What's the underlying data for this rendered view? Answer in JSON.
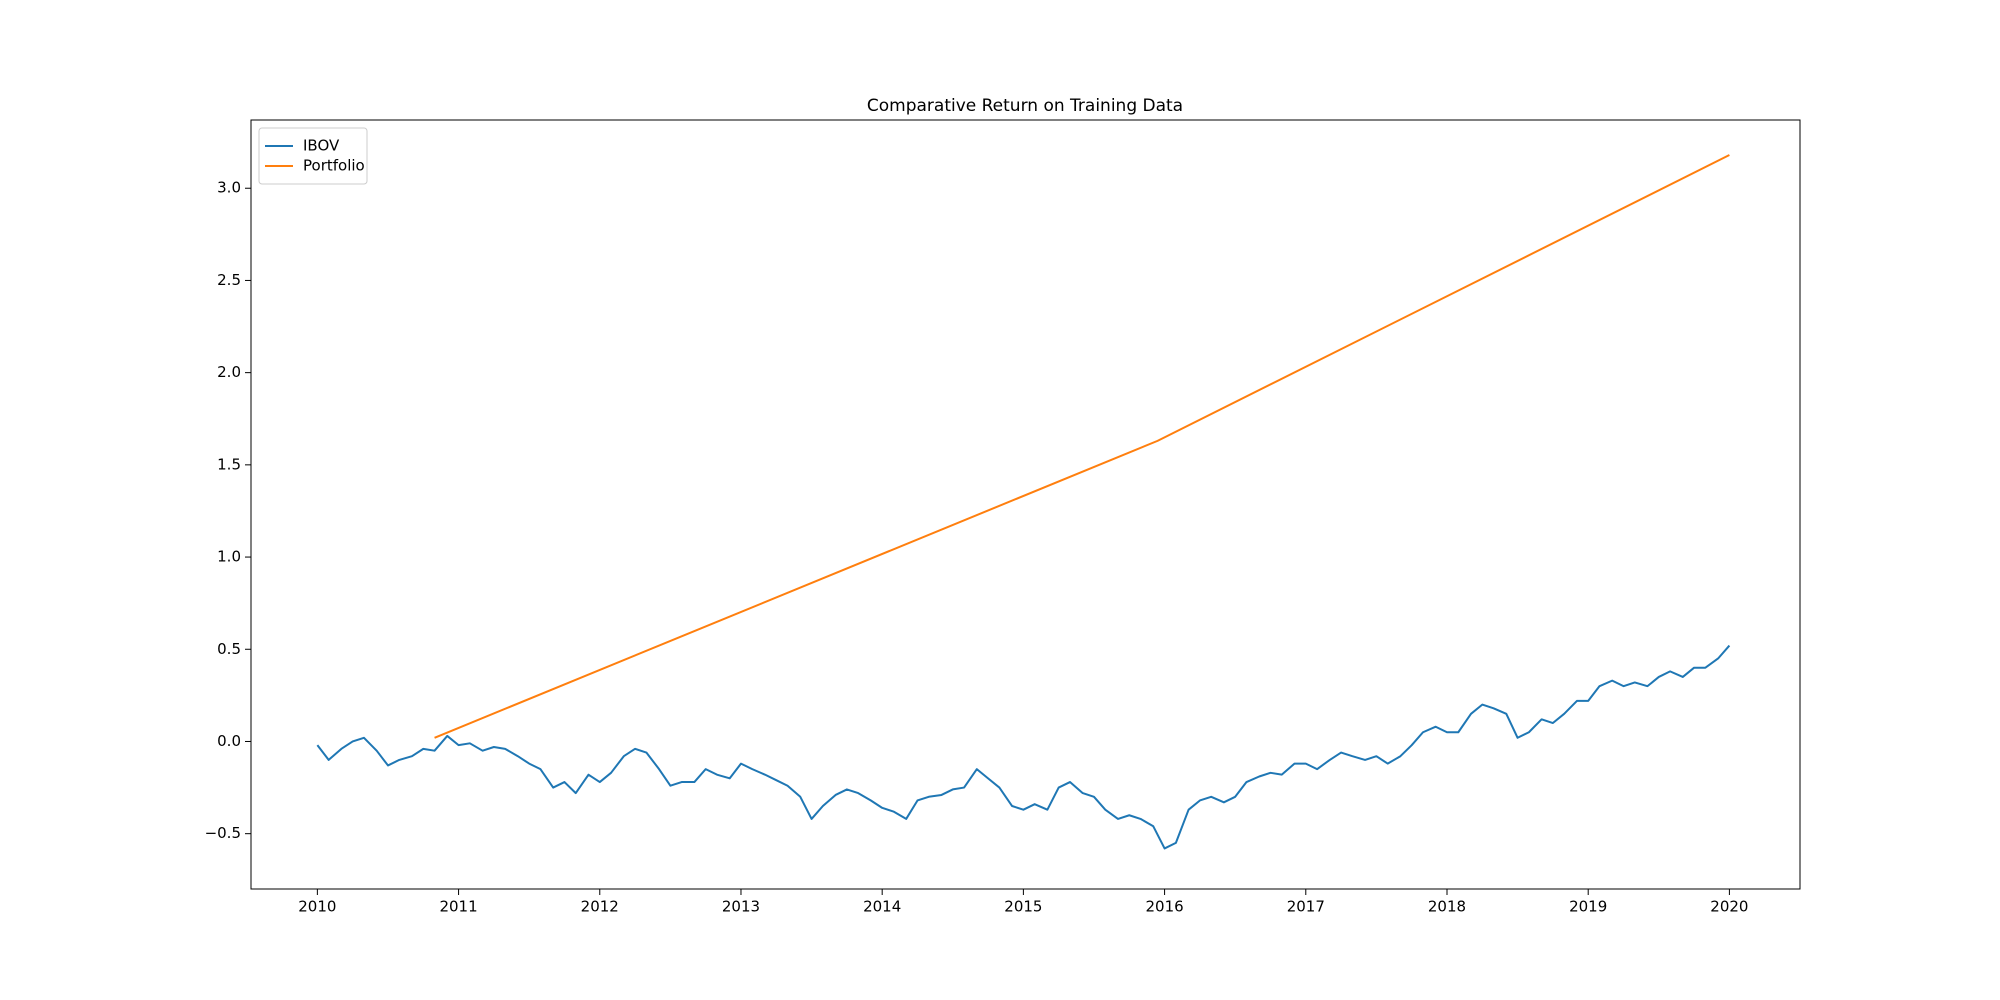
{
  "chart_data": {
    "type": "line",
    "title": "Comparative Return on Training Data",
    "xlim": [
      2009.53,
      2020.5
    ],
    "xticks": [
      2010,
      2011,
      2012,
      2013,
      2014,
      2015,
      2016,
      2017,
      2018,
      2019,
      2020
    ],
    "ylim": [
      -0.8,
      3.37
    ],
    "yticks": [
      {
        "value": -0.5,
        "label": "−0.5"
      },
      {
        "value": 0,
        "label": "0.0"
      },
      0.5,
      {
        "value": 1,
        "label": "1.0"
      },
      1.5,
      {
        "value": 2,
        "label": "2.0"
      },
      2.5,
      {
        "value": 3,
        "label": "3.0"
      }
    ],
    "grid": false,
    "legend": "upper-left",
    "series": [
      {
        "name": "IBOV",
        "color": "#1f77b4",
        "x": [
          2010.0,
          2010.08,
          2010.17,
          2010.25,
          2010.33,
          2010.42,
          2010.5,
          2010.58,
          2010.67,
          2010.75,
          2010.83,
          2010.92,
          2011.0,
          2011.08,
          2011.17,
          2011.25,
          2011.33,
          2011.42,
          2011.5,
          2011.58,
          2011.67,
          2011.75,
          2011.83,
          2011.92,
          2012.0,
          2012.08,
          2012.17,
          2012.25,
          2012.33,
          2012.42,
          2012.5,
          2012.58,
          2012.67,
          2012.75,
          2012.83,
          2012.92,
          2013.0,
          2013.08,
          2013.17,
          2013.25,
          2013.33,
          2013.42,
          2013.5,
          2013.58,
          2013.67,
          2013.75,
          2013.83,
          2013.92,
          2014.0,
          2014.08,
          2014.17,
          2014.25,
          2014.33,
          2014.42,
          2014.5,
          2014.58,
          2014.67,
          2014.75,
          2014.83,
          2014.92,
          2015.0,
          2015.08,
          2015.17,
          2015.25,
          2015.33,
          2015.42,
          2015.5,
          2015.58,
          2015.67,
          2015.75,
          2015.83,
          2015.92,
          2016.0,
          2016.08,
          2016.17,
          2016.25,
          2016.33,
          2016.42,
          2016.5,
          2016.58,
          2016.67,
          2016.75,
          2016.83,
          2016.92,
          2017.0,
          2017.08,
          2017.17,
          2017.25,
          2017.33,
          2017.42,
          2017.5,
          2017.58,
          2017.67,
          2017.75,
          2017.83,
          2017.92,
          2018.0,
          2018.08,
          2018.17,
          2018.25,
          2018.33,
          2018.42,
          2018.5,
          2018.58,
          2018.67,
          2018.75,
          2018.83,
          2018.92,
          2019.0,
          2019.08,
          2019.17,
          2019.25,
          2019.33,
          2019.42,
          2019.5,
          2019.58,
          2019.67,
          2019.75,
          2019.83,
          2019.92,
          2020.0
        ],
        "values": [
          -0.02,
          -0.1,
          -0.04,
          0.0,
          0.02,
          -0.05,
          -0.13,
          -0.1,
          -0.08,
          -0.04,
          -0.05,
          0.03,
          -0.02,
          -0.01,
          -0.05,
          -0.03,
          -0.04,
          -0.08,
          -0.12,
          -0.15,
          -0.25,
          -0.22,
          -0.28,
          -0.18,
          -0.22,
          -0.17,
          -0.08,
          -0.04,
          -0.06,
          -0.15,
          -0.24,
          -0.22,
          -0.22,
          -0.15,
          -0.18,
          -0.2,
          -0.12,
          -0.15,
          -0.18,
          -0.21,
          -0.24,
          -0.3,
          -0.42,
          -0.35,
          -0.29,
          -0.26,
          -0.28,
          -0.32,
          -0.36,
          -0.38,
          -0.42,
          -0.32,
          -0.3,
          -0.29,
          -0.26,
          -0.25,
          -0.15,
          -0.2,
          -0.25,
          -0.35,
          -0.37,
          -0.34,
          -0.37,
          -0.25,
          -0.22,
          -0.28,
          -0.3,
          -0.37,
          -0.42,
          -0.4,
          -0.42,
          -0.46,
          -0.58,
          -0.55,
          -0.37,
          -0.32,
          -0.3,
          -0.33,
          -0.3,
          -0.22,
          -0.19,
          -0.17,
          -0.18,
          -0.12,
          -0.12,
          -0.15,
          -0.1,
          -0.06,
          -0.08,
          -0.1,
          -0.08,
          -0.12,
          -0.08,
          -0.02,
          0.05,
          0.08,
          0.05,
          0.05,
          0.15,
          0.2,
          0.18,
          0.15,
          0.02,
          0.05,
          0.12,
          0.1,
          0.15,
          0.22,
          0.22,
          0.3,
          0.33,
          0.3,
          0.32,
          0.3,
          0.35,
          0.38,
          0.35,
          0.4,
          0.4,
          0.45,
          0.52
        ]
      },
      {
        "name": "Portfolio",
        "color": "#ff7f0e",
        "x": [
          2010.83,
          2015.95,
          2020.0
        ],
        "values": [
          0.02,
          1.63,
          3.18
        ]
      }
    ]
  }
}
